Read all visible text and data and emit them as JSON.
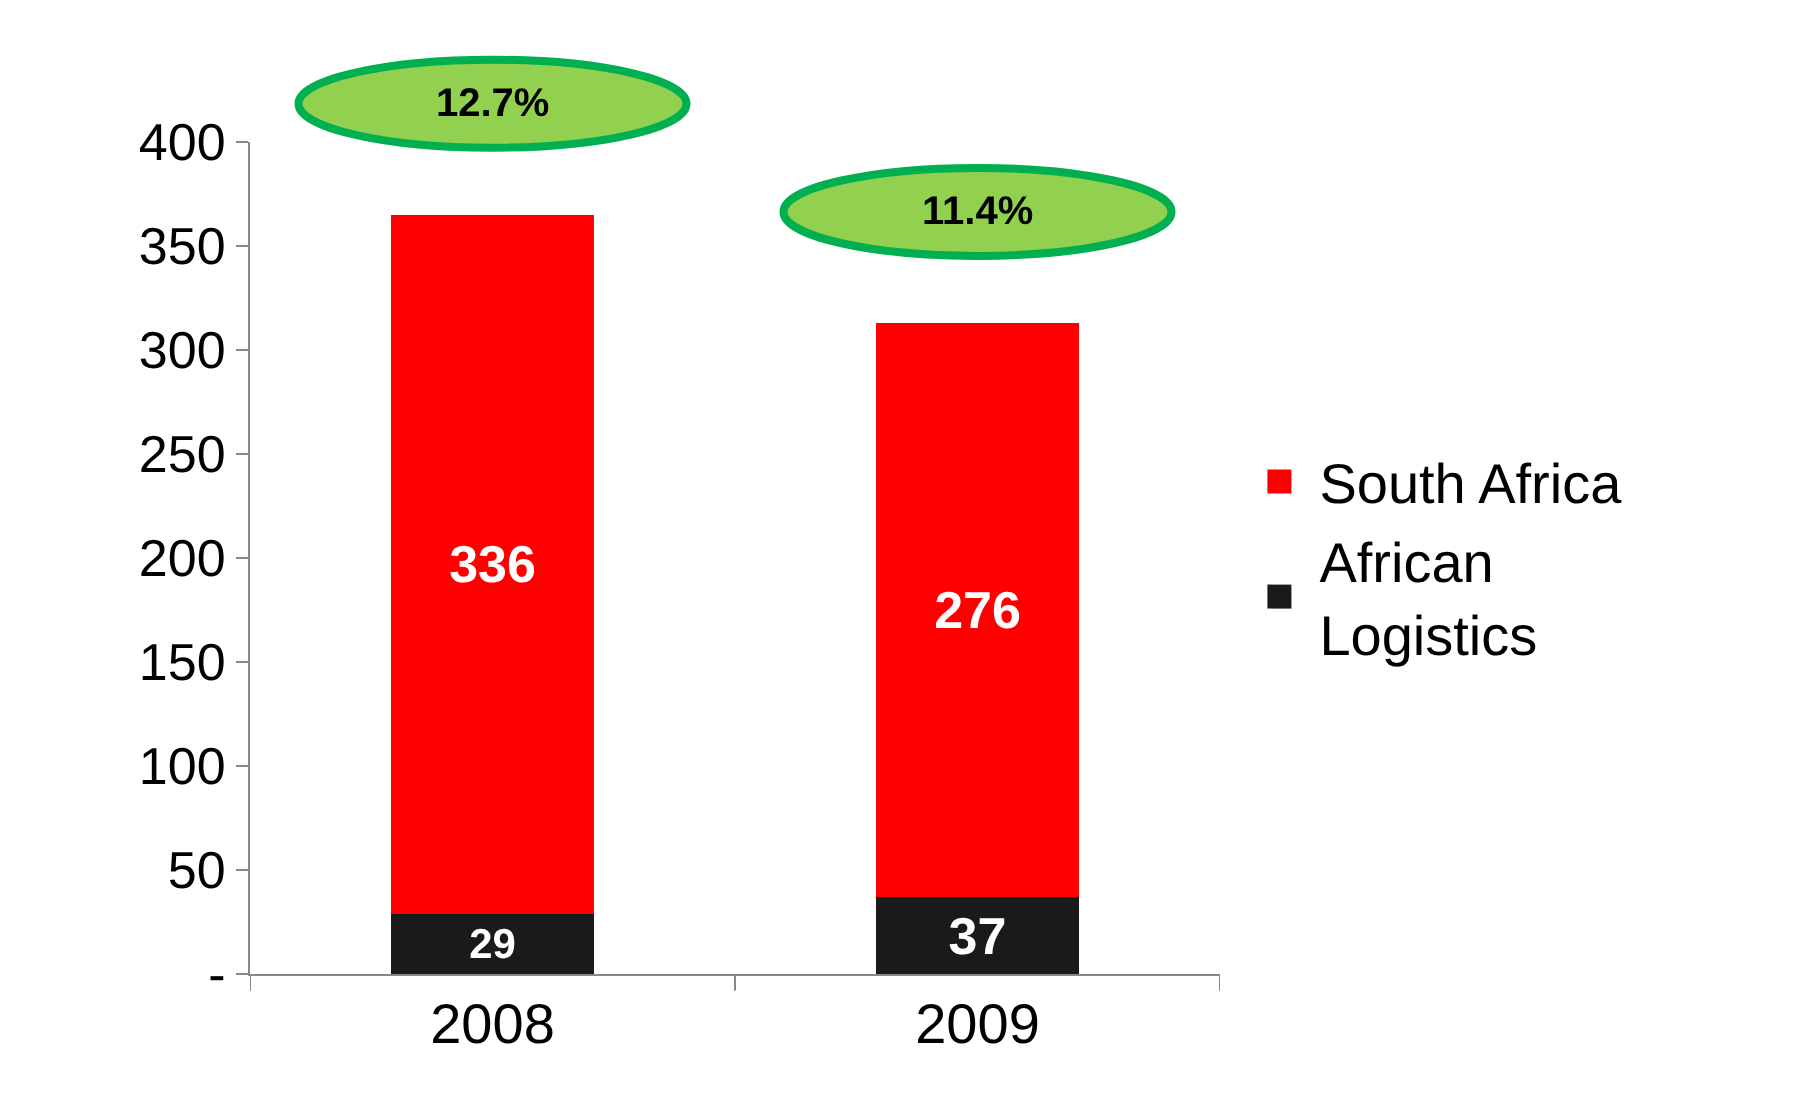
{
  "chart_data": {
    "type": "bar",
    "stacked": true,
    "categories": [
      "2008",
      "2009"
    ],
    "series": [
      {
        "name": "African Logistics",
        "color": "#1a1a1a",
        "values": [
          29,
          37
        ]
      },
      {
        "name": "South Africa",
        "color": "#ff0000",
        "values": [
          336,
          276
        ]
      }
    ],
    "data_labels": true,
    "annotations": [
      "12.7%",
      "11.4%"
    ],
    "ylim": [
      0,
      400
    ],
    "yticks": [
      {
        "value": 0,
        "label": "-"
      },
      50,
      100,
      150,
      200,
      250,
      300,
      350,
      400
    ],
    "grid": false,
    "legend": "right"
  }
}
